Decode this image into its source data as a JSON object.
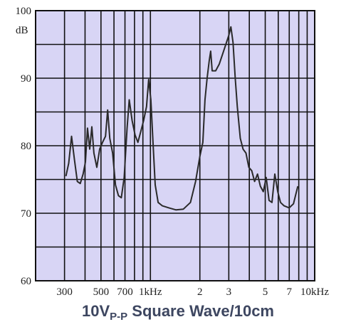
{
  "chart_data": {
    "type": "line",
    "title_parts": [
      "10V",
      "P-P",
      " Square Wave/10cm"
    ],
    "ylabel": "dB",
    "xscale": "log",
    "xlim": [
      200,
      10000
    ],
    "ylim": [
      60,
      100
    ],
    "xticks": [
      300,
      500,
      700,
      {
        "value": 1000,
        "label": "1kHz"
      },
      {
        "value": 2000,
        "label": "2"
      },
      {
        "value": 3000,
        "label": "3"
      },
      {
        "value": 5000,
        "label": "5"
      },
      {
        "value": 7000,
        "label": "7"
      },
      {
        "value": 10000,
        "label": "10kHz"
      }
    ],
    "xminor": [
      200,
      400,
      600,
      800,
      900,
      4000,
      6000,
      8000,
      9000
    ],
    "yticks": [
      60,
      70,
      80,
      90,
      100
    ],
    "yminor": [
      65,
      75,
      85,
      95
    ],
    "grid": true,
    "color": "#2a2a2a",
    "x": [
      306,
      318,
      331,
      345,
      359,
      374,
      389,
      402,
      414,
      427,
      440,
      453,
      472,
      491,
      511,
      533,
      549,
      566,
      589,
      613,
      639,
      665,
      692,
      721,
      743,
      774,
      806,
      839,
      873,
      909,
      947,
      976,
      1006,
      1037,
      1069,
      1114,
      1183,
      1295,
      1432,
      1584,
      1753,
      1883,
      2000,
      2084,
      2148,
      2214,
      2281,
      2328,
      2377,
      2495,
      2626,
      2762,
      2904,
      2994,
      3090,
      3184,
      3282,
      3381,
      3524,
      3666,
      3818,
      3974,
      4139,
      4306,
      4488,
      4670,
      4864,
      5070,
      5272,
      5496,
      5716,
      5958,
      6194,
      6516,
      6998,
      7430,
      7746,
      7890
    ],
    "values": [
      75.5,
      77.4,
      81.4,
      77.9,
      74.7,
      74.4,
      75.8,
      77.6,
      82.6,
      79.5,
      82.8,
      78.9,
      76.8,
      79.5,
      80.5,
      81.4,
      85.3,
      81.1,
      78.9,
      74.2,
      72.6,
      72.3,
      75.3,
      82.6,
      86.8,
      83.7,
      81.6,
      80.5,
      82.1,
      83.7,
      85.8,
      89.8,
      86.8,
      80.5,
      74.2,
      71.6,
      71.1,
      70.8,
      70.5,
      70.6,
      71.6,
      74.7,
      78.4,
      80.5,
      86.8,
      90.0,
      92.6,
      94.0,
      91.1,
      91.1,
      92.1,
      93.7,
      95.3,
      96.3,
      97.6,
      95.3,
      90.0,
      85.8,
      81.1,
      79.5,
      78.9,
      76.8,
      76.3,
      74.7,
      75.8,
      74.0,
      73.2,
      75.3,
      71.9,
      71.6,
      75.8,
      73.2,
      71.6,
      71.1,
      70.8,
      71.4,
      73.2,
      74.0
    ]
  }
}
